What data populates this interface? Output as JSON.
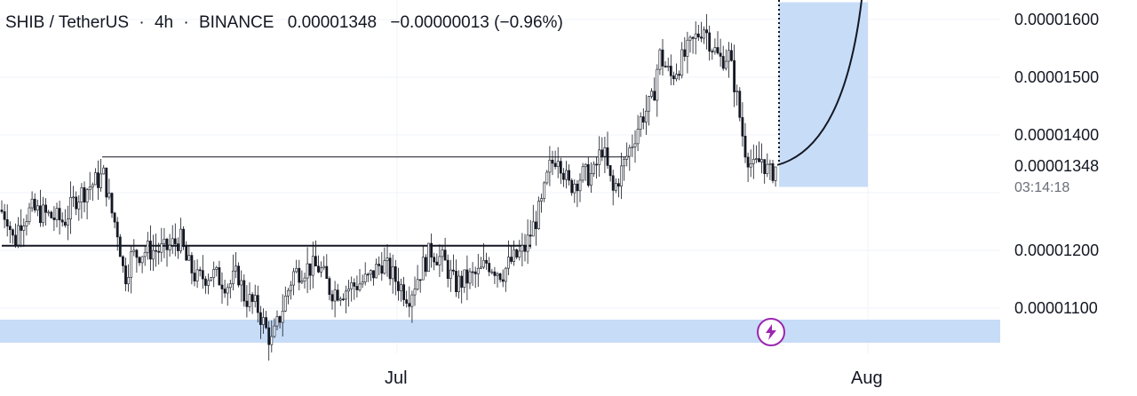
{
  "legend": {
    "symbol": "SHIB / TetherUS",
    "interval": "4h",
    "exchange": "BINANCE",
    "last": "0.00001348",
    "change": "−0.00000013 (−0.96%)",
    "dot": "·"
  },
  "price_axis": {
    "labels": [
      "0.00001600",
      "0.00001500",
      "0.00001400",
      "0.00001348",
      "0.00001200",
      "0.00001100"
    ],
    "countdown": "03:14:18"
  },
  "time_axis": {
    "labels": [
      "Jul",
      "Aug"
    ]
  },
  "alert_icon": "lightning-icon",
  "colors": {
    "candle": "#131722",
    "projection_fill": "#c7dcf7",
    "support_zone": "#c7dcf7",
    "grid": "#f0f3fa",
    "alert": "#9c27b0"
  },
  "chart_data": {
    "type": "candlestick",
    "title": "SHIB / TetherUS · 4h · BINANCE",
    "interval": "4h",
    "x_ticks": [
      "Jul",
      "Aug"
    ],
    "ylim": [
      1.03e-05,
      1.63e-05
    ],
    "y_ticks": [
      1.6e-05,
      1.5e-05,
      1.4e-05,
      1.348e-05,
      1.2e-05,
      1.1e-05
    ],
    "last_price": 1.348e-05,
    "price_path": [
      [
        0,
        1.27e-05
      ],
      [
        8,
        1.26e-05
      ],
      [
        16,
        1.21e-05
      ],
      [
        22,
        1.25e-05
      ],
      [
        35,
        1.27e-05
      ],
      [
        55,
        1.26e-05
      ],
      [
        72,
        1.25e-05
      ],
      [
        85,
        1.29e-05
      ],
      [
        100,
        1.31e-05
      ],
      [
        117,
        1.33e-05
      ],
      [
        125,
        1.27e-05
      ],
      [
        133,
        1.23e-05
      ],
      [
        140,
        1.15e-05
      ],
      [
        148,
        1.19e-05
      ],
      [
        165,
        1.2e-05
      ],
      [
        185,
        1.2e-05
      ],
      [
        203,
        1.22e-05
      ],
      [
        210,
        1.18e-05
      ],
      [
        222,
        1.15e-05
      ],
      [
        238,
        1.16e-05
      ],
      [
        258,
        1.14e-05
      ],
      [
        268,
        1.16e-05
      ],
      [
        275,
        1.12e-05
      ],
      [
        290,
        1.1e-05
      ],
      [
        300,
        1.06e-05
      ],
      [
        306,
        1.04e-05
      ],
      [
        318,
        1.1e-05
      ],
      [
        330,
        1.16e-05
      ],
      [
        345,
        1.17e-05
      ],
      [
        360,
        1.17e-05
      ],
      [
        372,
        1.13e-05
      ],
      [
        385,
        1.13e-05
      ],
      [
        400,
        1.14e-05
      ],
      [
        415,
        1.15e-05
      ],
      [
        430,
        1.18e-05
      ],
      [
        445,
        1.15e-05
      ],
      [
        460,
        1.12e-05
      ],
      [
        472,
        1.16e-05
      ],
      [
        485,
        1.2e-05
      ],
      [
        500,
        1.18e-05
      ],
      [
        512,
        1.14e-05
      ],
      [
        525,
        1.15e-05
      ],
      [
        540,
        1.16e-05
      ],
      [
        548,
        1.18e-05
      ],
      [
        565,
        1.16e-05
      ],
      [
        575,
        1.18e-05
      ],
      [
        590,
        1.2e-05
      ],
      [
        600,
        1.24e-05
      ],
      [
        610,
        1.28e-05
      ],
      [
        618,
        1.34e-05
      ],
      [
        628,
        1.37e-05
      ],
      [
        640,
        1.31e-05
      ],
      [
        655,
        1.33e-05
      ],
      [
        668,
        1.33e-05
      ],
      [
        678,
        1.38e-05
      ],
      [
        690,
        1.3e-05
      ],
      [
        700,
        1.34e-05
      ],
      [
        710,
        1.38e-05
      ],
      [
        722,
        1.43e-05
      ],
      [
        735,
        1.46e-05
      ],
      [
        742,
        1.54e-05
      ],
      [
        755,
        1.5e-05
      ],
      [
        768,
        1.53e-05
      ],
      [
        780,
        1.56e-05
      ],
      [
        792,
        1.59e-05
      ],
      [
        800,
        1.56e-05
      ],
      [
        810,
        1.53e-05
      ],
      [
        820,
        1.54e-05
      ],
      [
        828,
        1.48e-05
      ],
      [
        838,
        1.38e-05
      ],
      [
        848,
        1.34e-05
      ],
      [
        858,
        1.36e-05
      ],
      [
        866,
        1.33e-05
      ],
      [
        875,
        1.348e-05
      ]
    ],
    "horizontal_lines": [
      {
        "price": 1.208e-05,
        "label": ""
      },
      {
        "price": 1.362e-05,
        "label": ""
      }
    ],
    "support_zone": [
      1.04e-05,
      1.08e-05
    ],
    "projection_box": {
      "price_low": 1.31e-05,
      "price_high": 1.63e-05,
      "projection_end_price": 1.63e-05
    }
  }
}
